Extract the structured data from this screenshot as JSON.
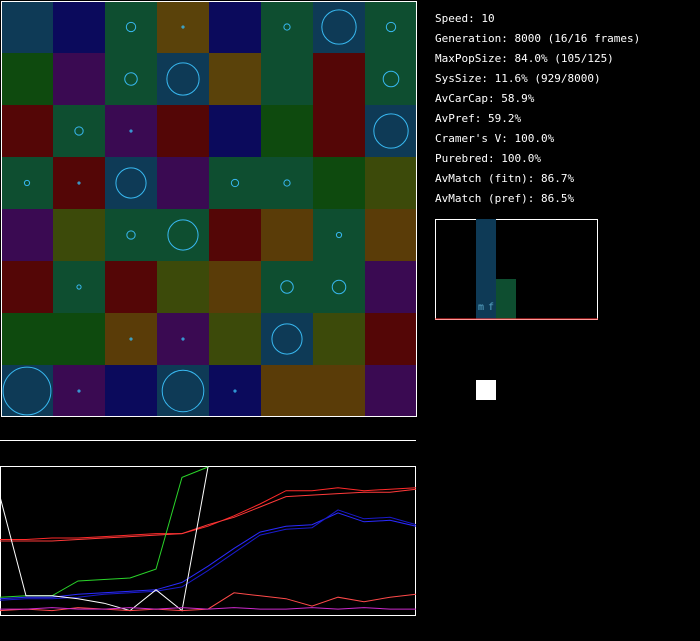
{
  "stats": {
    "speed": "Speed: 10",
    "generation": "Generation: 8000 (16/16 frames)",
    "maxpopsize": "MaxPopSize: 84.0% (105/125)",
    "syssize": "SysSize: 11.6% (929/8000)",
    "avcarcap": "AvCarCap: 58.9%",
    "avpref": "AvPref: 59.2%",
    "cramers_v": "Cramer's V: 100.0%",
    "purebred": "Purebred: 100.0%",
    "avmatch_fitn": "AvMatch (fitn): 86.7%",
    "avmatch_pref": "AvMatch (pref): 86.5%"
  },
  "histogram": {
    "label_m": "m",
    "label_f": "f",
    "m_level": 1.0,
    "f_level": 0.4
  },
  "grid": {
    "colors": {
      "teal": "#0e3a56",
      "navy": "#0b0a5c",
      "green": "#0e4e30",
      "olive": "#5a420a",
      "darkgreen": "#0e4a0e",
      "purple": "#3a0a52",
      "maroon": "#540606",
      "olivegreen": "#3c4a0a",
      "darkolive": "#5a3c08"
    },
    "rows": [
      [
        "teal",
        "navy",
        "green",
        "olive",
        "navy",
        "green",
        "teal",
        "green"
      ],
      [
        "darkgreen",
        "purple",
        "green",
        "teal",
        "olive",
        "green",
        "maroon",
        "green"
      ],
      [
        "maroon",
        "green",
        "purple",
        "maroon",
        "navy",
        "darkgreen",
        "maroon",
        "teal"
      ],
      [
        "green",
        "maroon",
        "teal",
        "purple",
        "green",
        "green",
        "darkgreen",
        "olivegreen"
      ],
      [
        "purple",
        "olivegreen",
        "green",
        "green",
        "maroon",
        "darkolive",
        "green",
        "darkolive"
      ],
      [
        "maroon",
        "green",
        "maroon",
        "olivegreen",
        "darkolive",
        "green",
        "green",
        "purple"
      ],
      [
        "darkgreen",
        "darkgreen",
        "darkolive",
        "purple",
        "olivegreen",
        "teal",
        "olivegreen",
        "maroon"
      ],
      [
        "teal",
        "purple",
        "navy",
        "teal",
        "navy",
        "darkolive",
        "darkolive",
        "purple"
      ]
    ],
    "circles": [
      [
        0,
        2,
        0.09
      ],
      [
        0,
        3,
        0.02
      ],
      [
        0,
        5,
        0.06
      ],
      [
        0,
        6,
        0.33
      ],
      [
        0,
        7,
        0.09
      ],
      [
        1,
        2,
        0.12
      ],
      [
        1,
        3,
        0.31
      ],
      [
        1,
        7,
        0.15
      ],
      [
        2,
        1,
        0.08
      ],
      [
        2,
        2,
        0.02
      ],
      [
        2,
        7,
        0.33
      ],
      [
        3,
        0,
        0.05
      ],
      [
        3,
        1,
        0.02
      ],
      [
        3,
        2,
        0.29
      ],
      [
        3,
        4,
        0.07
      ],
      [
        3,
        5,
        0.06
      ],
      [
        4,
        2,
        0.08
      ],
      [
        4,
        3,
        0.29
      ],
      [
        4,
        6,
        0.05
      ],
      [
        5,
        1,
        0.04
      ],
      [
        5,
        5,
        0.12
      ],
      [
        5,
        6,
        0.13
      ],
      [
        6,
        2,
        0.02
      ],
      [
        6,
        3,
        0.02
      ],
      [
        6,
        5,
        0.29
      ],
      [
        7,
        0,
        0.46
      ],
      [
        7,
        1,
        0.02
      ],
      [
        7,
        3,
        0.4
      ],
      [
        7,
        4,
        0.02
      ]
    ]
  },
  "timeseries": {
    "n": 17,
    "series": [
      {
        "color": "#ff2a2a",
        "values": [
          0.49,
          0.49,
          0.48,
          0.48,
          0.47,
          0.46,
          0.45,
          0.45,
          0.4,
          0.33,
          0.25,
          0.16,
          0.16,
          0.14,
          0.16,
          0.15,
          0.14
        ]
      },
      {
        "color": "#ff3a3a",
        "values": [
          0.5,
          0.5,
          0.5,
          0.49,
          0.48,
          0.47,
          0.46,
          0.45,
          0.39,
          0.34,
          0.27,
          0.2,
          0.19,
          0.18,
          0.17,
          0.17,
          0.15
        ]
      },
      {
        "color": "#2a2aff",
        "values": [
          0.89,
          0.88,
          0.88,
          0.86,
          0.85,
          0.84,
          0.83,
          0.78,
          0.67,
          0.55,
          0.44,
          0.4,
          0.39,
          0.31,
          0.37,
          0.36,
          0.4
        ]
      },
      {
        "color": "#1a1acc",
        "values": [
          0.9,
          0.89,
          0.89,
          0.88,
          0.86,
          0.85,
          0.84,
          0.81,
          0.7,
          0.58,
          0.46,
          0.42,
          0.41,
          0.29,
          0.35,
          0.34,
          0.39
        ]
      },
      {
        "color": "#2ad42a",
        "values": [
          0.88,
          0.87,
          0.87,
          0.77,
          0.76,
          0.75,
          0.69,
          0.07,
          0.0,
          null,
          null,
          null,
          null,
          null,
          null,
          null,
          null
        ]
      },
      {
        "color": "#ffffff",
        "values": [
          0.2,
          0.87,
          0.87,
          0.89,
          0.92,
          0.97,
          0.83,
          0.97,
          0.0,
          null,
          null,
          null,
          null,
          null,
          null,
          null,
          null
        ]
      },
      {
        "color": "#ff4a4a",
        "values": [
          0.97,
          0.96,
          0.97,
          0.95,
          0.96,
          0.97,
          0.96,
          0.97,
          0.96,
          0.85,
          0.87,
          0.89,
          0.94,
          0.88,
          0.91,
          0.88,
          0.86
        ]
      },
      {
        "color": "#cc2acc",
        "values": [
          0.96,
          0.96,
          0.95,
          0.96,
          0.96,
          0.95,
          0.96,
          0.95,
          0.96,
          0.95,
          0.96,
          0.96,
          0.95,
          0.96,
          0.95,
          0.96,
          0.96
        ]
      }
    ]
  }
}
